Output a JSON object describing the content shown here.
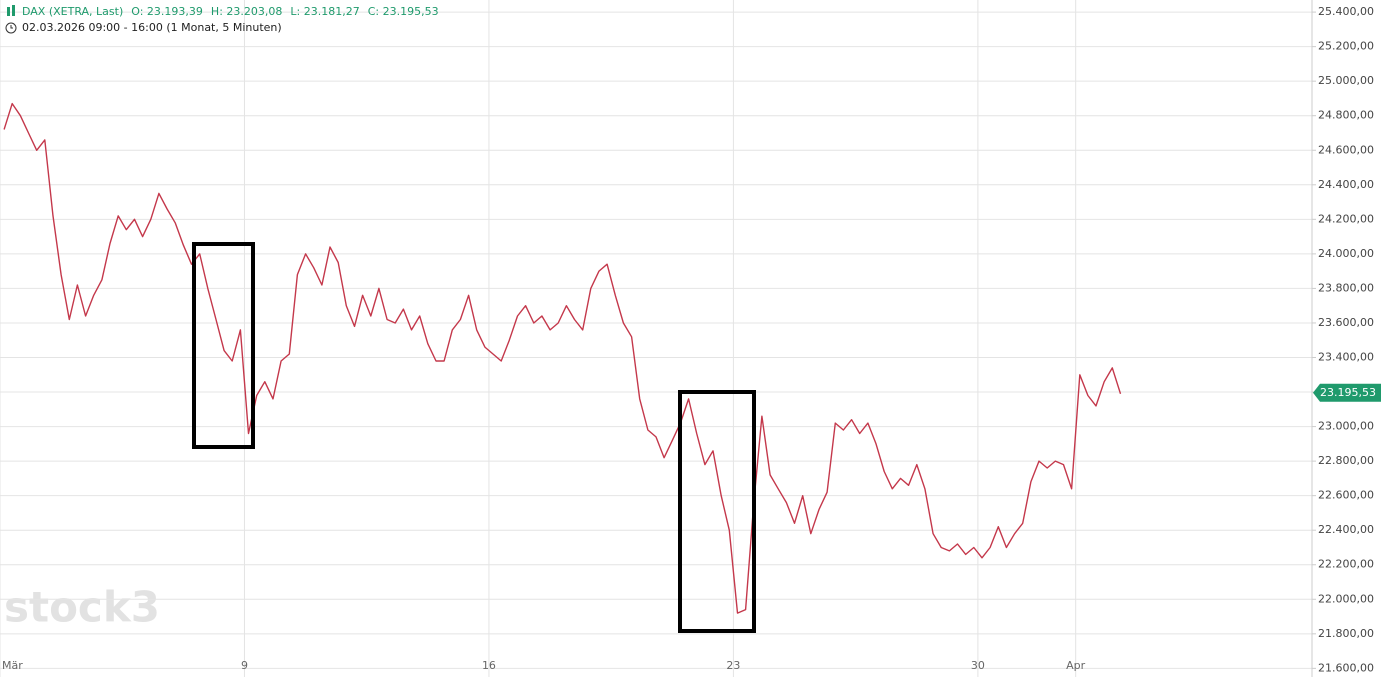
{
  "chart_data": {
    "type": "line",
    "title": "DAX (XETRA, Last)",
    "ohlc": [
      "O: 23.193,39",
      "H: 23.203,08",
      "L: 23.181,27",
      "C: 23.195,53"
    ],
    "subtitle": "02.03.2026 09:00 - 16:00  (1 Monat, 5 Minuten)",
    "watermark": "stock3",
    "last_price": {
      "value": 23195.53,
      "label": "23.195,53"
    },
    "categories": [
      "Mär",
      null,
      null,
      null,
      null,
      null,
      null,
      null,
      null,
      null,
      null,
      null,
      null,
      null,
      null,
      null,
      null,
      null,
      null,
      null,
      null,
      null,
      null,
      null,
      null,
      null,
      null,
      null,
      null,
      null,
      "9",
      null,
      null,
      null,
      null,
      null,
      null,
      null,
      null,
      null,
      null,
      null,
      null,
      null,
      null,
      null,
      null,
      null,
      null,
      null,
      null,
      null,
      null,
      null,
      null,
      null,
      null,
      null,
      null,
      null,
      "16",
      null,
      null,
      null,
      null,
      null,
      null,
      null,
      null,
      null,
      null,
      null,
      null,
      null,
      null,
      null,
      null,
      null,
      null,
      null,
      null,
      null,
      null,
      null,
      null,
      null,
      null,
      null,
      null,
      null,
      "23",
      null,
      null,
      null,
      null,
      null,
      null,
      null,
      null,
      null,
      null,
      null,
      null,
      null,
      null,
      null,
      null,
      null,
      null,
      null,
      null,
      null,
      null,
      null,
      null,
      null,
      null,
      null,
      null,
      null,
      "30",
      null,
      null,
      null,
      null,
      null,
      null,
      null,
      null,
      null,
      null,
      null,
      "Apr",
      null,
      null,
      null,
      null,
      null,
      null,
      null,
      null,
      null,
      null,
      null,
      null,
      null,
      null,
      null,
      null,
      null,
      null,
      null,
      null,
      null,
      null,
      null,
      null,
      null,
      null,
      null,
      null
    ],
    "series": [
      {
        "name": "DAX",
        "color": "#c4384b",
        "values": [
          24720,
          24870,
          24800,
          24700,
          24600,
          24660,
          24220,
          23880,
          23620,
          23820,
          23640,
          23760,
          23850,
          24060,
          24220,
          24140,
          24200,
          24100,
          24200,
          24350,
          24260,
          24180,
          24050,
          23940,
          24000,
          23800,
          23620,
          23440,
          23380,
          23560,
          22960,
          23180,
          23260,
          23160,
          23380,
          23420,
          23880,
          24000,
          23920,
          23820,
          24040,
          23950,
          23700,
          23580,
          23760,
          23640,
          23800,
          23620,
          23600,
          23680,
          23560,
          23640,
          23480,
          23380,
          23380,
          23560,
          23620,
          23760,
          23560,
          23460,
          23420,
          23380,
          23500,
          23640,
          23700,
          23600,
          23640,
          23560,
          23600,
          23700,
          23620,
          23560,
          23800,
          23900,
          23940,
          23760,
          23600,
          23520,
          23160,
          22980,
          22940,
          22820,
          22920,
          23020,
          23160,
          22960,
          22780,
          22860,
          22600,
          22400,
          21920,
          21940,
          22560,
          23060,
          22720,
          22640,
          22560,
          22440,
          22600,
          22380,
          22520,
          22620,
          23020,
          22980,
          23040,
          22960,
          23020,
          22900,
          22740,
          22640,
          22700,
          22660,
          22780,
          22640,
          22380,
          22300,
          22280,
          22320,
          22260,
          22300,
          22240,
          22300,
          22420,
          22300,
          22380,
          22440,
          22680,
          22800,
          22760,
          22800,
          22780,
          22640,
          23300,
          23180,
          23120,
          23260,
          23340,
          23190,
          null,
          null,
          null,
          null,
          null,
          null,
          null,
          null,
          null,
          null,
          null,
          null,
          null,
          null,
          null,
          null,
          null,
          null,
          null,
          null,
          null,
          null,
          null
        ]
      }
    ],
    "ylim": [
      21550,
      25470
    ],
    "yticks": [
      {
        "value": 21600,
        "label": "21.600,00"
      },
      {
        "value": 21800,
        "label": "21.800,00"
      },
      {
        "value": 22000,
        "label": "22.000,00"
      },
      {
        "value": 22200,
        "label": "22.200,00"
      },
      {
        "value": 22400,
        "label": "22.400,00"
      },
      {
        "value": 22600,
        "label": "22.600,00"
      },
      {
        "value": 22800,
        "label": "22.800,00"
      },
      {
        "value": 23000,
        "label": "23.000,00"
      },
      {
        "value": 23200,
        "label": "23.200,00"
      },
      {
        "value": 23400,
        "label": "23.400,00"
      },
      {
        "value": 23600,
        "label": "23.600,00"
      },
      {
        "value": 23800,
        "label": "23.800,00"
      },
      {
        "value": 24000,
        "label": "24.000,00"
      },
      {
        "value": 24200,
        "label": "24.200,00"
      },
      {
        "value": 24400,
        "label": "24.400,00"
      },
      {
        "value": 24600,
        "label": "24.600,00"
      },
      {
        "value": 24800,
        "label": "24.800,00"
      },
      {
        "value": 25000,
        "label": "25.000,00"
      },
      {
        "value": 25200,
        "label": "25.200,00"
      },
      {
        "value": 25400,
        "label": "25.400,00"
      }
    ],
    "grid": true,
    "accent_color": "#1f9a6c"
  }
}
